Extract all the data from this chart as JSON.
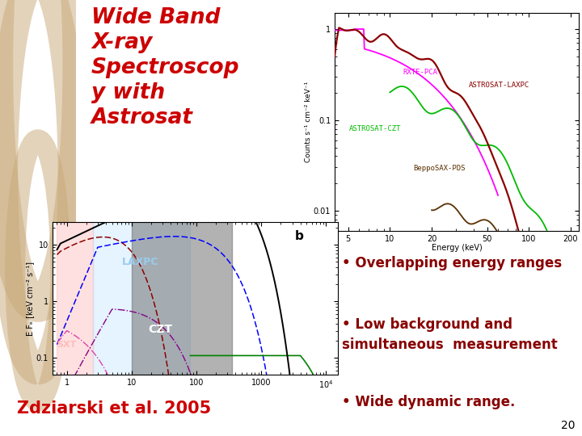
{
  "bg_beige": "#d4b896",
  "bg_white": "#ffffff",
  "title_text": "Wide Band\nX-ray\nSpectroscop\ny with\nAstrosat",
  "title_color": "#cc0000",
  "title_fontsize": 19,
  "citation_text": "Zdziarski et al. 2005",
  "citation_color": "#cc0000",
  "citation_fontsize": 15,
  "bullet_points": [
    "Overlapping energy ranges",
    "Low background and\nsimultaneous  measurement",
    "Wide dynamic range."
  ],
  "bullet_color": "#880000",
  "bullet_fontsize": 12,
  "page_number": "20",
  "top_plot_ylabel": "Counts s⁻¹ cm⁻² keV⁻¹",
  "top_plot_xlabel": "Energy (keV)",
  "bottom_plot_ylabel": "E Fₑ [keV cm⁻² s⁻¹]",
  "sxt_color": "#ffaaaa",
  "laxpc_color": "#add8e6",
  "czt_color": "#666666",
  "label_rxte": "RXTE-PCA",
  "label_laxpc": "ASTROSAT-LAXPC",
  "label_czt": "ASTROSAT-CZT",
  "label_beppo": "BeppoSAX-PDS"
}
